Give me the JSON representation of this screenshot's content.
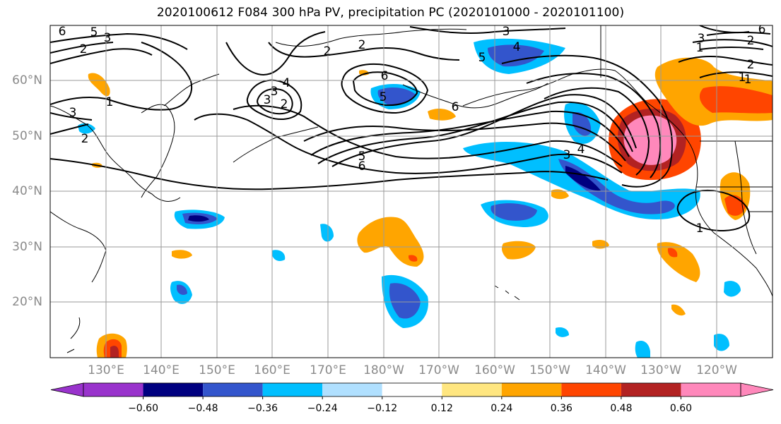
{
  "title": "2020100612 F084 300 hPa PV, precipitation PC (2020101000 - 2020101100)",
  "map": {
    "projection": "equirectangular",
    "extent": {
      "lon_min": 120,
      "lon_max": 250,
      "lat_min": 10,
      "lat_max": 70
    },
    "lon_labels": [
      "130°E",
      "140°E",
      "150°E",
      "160°E",
      "170°E",
      "180°W",
      "170°W",
      "160°W",
      "150°W",
      "140°W",
      "130°W",
      "120°W"
    ],
    "lat_labels": [
      "60°N",
      "50°N",
      "40°N",
      "30°N",
      "20°N"
    ],
    "gridlines": true,
    "pv_contour_labels": [
      "6",
      "5",
      "3",
      "2",
      "3",
      "2",
      "1",
      "3",
      "2",
      "4",
      "3",
      "2",
      "6",
      "5",
      "6",
      "5",
      "3",
      "4",
      "6",
      "2",
      "1",
      "3",
      "2",
      "1",
      "4",
      "3",
      "5",
      "6",
      "1",
      "2",
      "1"
    ]
  },
  "colorbar": {
    "ticks": [
      "−0.60",
      "−0.48",
      "−0.36",
      "−0.24",
      "−0.12",
      "0.12",
      "0.24",
      "0.36",
      "0.48",
      "0.60"
    ],
    "colors": [
      "#9933cc",
      "#000080",
      "#3355cc",
      "#00bfff",
      "#b0e0ff",
      "#ffffff",
      "#ffe680",
      "#ffa500",
      "#ff4500",
      "#b22222",
      "#ff88bb"
    ],
    "extend": "both"
  }
}
